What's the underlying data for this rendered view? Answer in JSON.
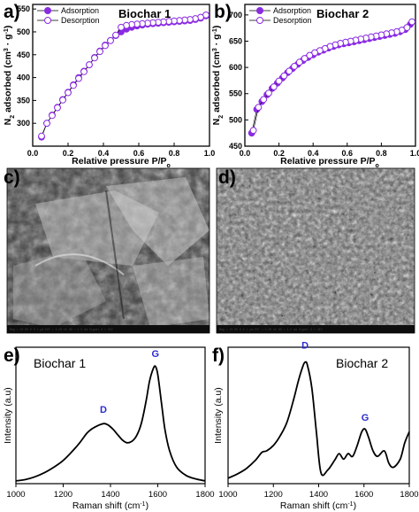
{
  "panels": {
    "a": "a)",
    "b": "b)",
    "c": "c)",
    "d": "d)",
    "e": "e)",
    "f": "f)"
  },
  "colors": {
    "series": "#8a2be2",
    "peak_label": "#2b2bd0",
    "line": "#000000",
    "sem_dark": "#3c3c3c",
    "sem_light": "#cfcfcf"
  },
  "chart_data": [
    {
      "id": "a",
      "type": "scatter",
      "title": "Biochar 1",
      "xlabel": "Relative pressure P/P",
      "xlabel_sub": "o",
      "ylabel": "N",
      "ylabel_sub": "2",
      "ylabel_rest": " adsorbed (cm",
      "ylabel_sup": "3",
      "ylabel_tail": " · g",
      "ylabel_sup2": "-1",
      "ylabel_end": ")",
      "xlim": [
        0.0,
        1.0
      ],
      "ylim": [
        250,
        560
      ],
      "xticks": [
        "0.0",
        "0.2",
        "0.4",
        "0.6",
        "0.8",
        "1.0"
      ],
      "yticks": [
        "300",
        "350",
        "400",
        "450",
        "500",
        "550"
      ],
      "legend": [
        "Adsorption",
        "Desorption"
      ],
      "legend_position": "top-left",
      "series": [
        {
          "name": "Adsorption",
          "marker": "filled-circle",
          "x": [
            0.05,
            0.08,
            0.11,
            0.14,
            0.17,
            0.2,
            0.23,
            0.26,
            0.29,
            0.32,
            0.35,
            0.38,
            0.41,
            0.44,
            0.47,
            0.5,
            0.53,
            0.56,
            0.59,
            0.62,
            0.65,
            0.68,
            0.71,
            0.74,
            0.77,
            0.8,
            0.83,
            0.86,
            0.89,
            0.92,
            0.95,
            0.98
          ],
          "y": [
            270,
            300,
            318,
            335,
            352,
            368,
            384,
            400,
            414,
            428,
            444,
            458,
            471,
            481,
            492,
            500,
            506,
            510,
            513,
            515,
            517,
            518,
            519,
            520,
            521,
            522,
            523,
            524,
            525,
            527,
            530,
            535
          ]
        },
        {
          "name": "Desorption",
          "marker": "open-circle",
          "x": [
            0.98,
            0.95,
            0.92,
            0.89,
            0.86,
            0.83,
            0.8,
            0.77,
            0.74,
            0.71,
            0.68,
            0.65,
            0.62,
            0.59,
            0.56,
            0.53,
            0.5,
            0.47,
            0.44,
            0.41,
            0.38,
            0.35,
            0.32,
            0.29,
            0.26,
            0.23,
            0.2,
            0.17,
            0.14,
            0.11,
            0.08,
            0.05
          ],
          "y": [
            537,
            532,
            529,
            527,
            526,
            525,
            524,
            523,
            522,
            521,
            520,
            519,
            518,
            517,
            516,
            514,
            510,
            493,
            481,
            470,
            457,
            443,
            428,
            413,
            398,
            383,
            367,
            351,
            334,
            317,
            300,
            272
          ]
        }
      ]
    },
    {
      "id": "b",
      "type": "scatter",
      "title": "Biochar 2",
      "xlabel": "Relative pressure P/P",
      "xlabel_sub": "o",
      "ylabel": "N",
      "ylabel_sub": "2",
      "ylabel_rest": " adsorbed (cm",
      "ylabel_sup": "3",
      "ylabel_tail": " · g",
      "ylabel_sup2": "-1",
      "ylabel_end": ")",
      "xlim": [
        0.0,
        1.0
      ],
      "ylim": [
        450,
        720
      ],
      "xticks": [
        "0.0",
        "0.2",
        "0.4",
        "0.6",
        "0.8",
        "1.0"
      ],
      "yticks": [
        "450",
        "500",
        "550",
        "600",
        "650",
        "700"
      ],
      "legend": [
        "Adsorption",
        "Desorption"
      ],
      "legend_position": "top-left",
      "series": [
        {
          "name": "Adsorption",
          "marker": "filled-circle",
          "x": [
            0.04,
            0.07,
            0.1,
            0.13,
            0.16,
            0.19,
            0.22,
            0.25,
            0.28,
            0.31,
            0.34,
            0.37,
            0.4,
            0.43,
            0.46,
            0.49,
            0.52,
            0.55,
            0.58,
            0.61,
            0.64,
            0.67,
            0.7,
            0.73,
            0.76,
            0.79,
            0.82,
            0.85,
            0.88,
            0.91,
            0.94,
            0.97
          ],
          "y": [
            475,
            520,
            535,
            548,
            560,
            570,
            580,
            590,
            598,
            606,
            613,
            619,
            624,
            629,
            633,
            637,
            640,
            643,
            645,
            647,
            649,
            651,
            653,
            655,
            657,
            659,
            661,
            663,
            665,
            668,
            672,
            682
          ]
        },
        {
          "name": "Desorption",
          "marker": "open-circle",
          "x": [
            0.98,
            0.95,
            0.92,
            0.89,
            0.86,
            0.83,
            0.8,
            0.77,
            0.74,
            0.71,
            0.68,
            0.65,
            0.62,
            0.59,
            0.56,
            0.53,
            0.5,
            0.47,
            0.44,
            0.41,
            0.38,
            0.35,
            0.32,
            0.29,
            0.26,
            0.23,
            0.2,
            0.17,
            0.14,
            0.11,
            0.08,
            0.05
          ],
          "y": [
            687,
            676,
            671,
            668,
            666,
            664,
            662,
            660,
            658,
            656,
            654,
            652,
            650,
            648,
            646,
            643,
            640,
            636,
            632,
            628,
            623,
            617,
            610,
            602,
            593,
            584,
            574,
            563,
            551,
            539,
            524,
            480
          ]
        }
      ]
    },
    {
      "id": "e",
      "type": "line",
      "title": "Biochar 1",
      "xlabel": "Raman shift (cm",
      "xlabel_sup": "-1",
      "xlabel_end": ")",
      "ylabel": "Intensity (a.u)",
      "xlim": [
        1000,
        1800
      ],
      "xticks": [
        "1000",
        "1200",
        "1400",
        "1600",
        "1800"
      ],
      "annotations": [
        {
          "text": "D",
          "x": 1370,
          "y": 0.52
        },
        {
          "text": "G",
          "x": 1590,
          "y": 0.93
        }
      ],
      "series": [
        {
          "x": [
            1000,
            1040,
            1080,
            1120,
            1160,
            1200,
            1240,
            1270,
            1300,
            1320,
            1340,
            1360,
            1375,
            1390,
            1410,
            1430,
            1450,
            1470,
            1490,
            1510,
            1530,
            1550,
            1565,
            1580,
            1590,
            1600,
            1615,
            1630,
            1650,
            1680,
            1720,
            1760,
            1800
          ],
          "y": [
            0.02,
            0.03,
            0.05,
            0.08,
            0.12,
            0.17,
            0.24,
            0.3,
            0.37,
            0.4,
            0.42,
            0.435,
            0.44,
            0.43,
            0.4,
            0.36,
            0.32,
            0.3,
            0.31,
            0.35,
            0.44,
            0.6,
            0.75,
            0.84,
            0.86,
            0.8,
            0.6,
            0.4,
            0.24,
            0.12,
            0.06,
            0.035,
            0.02
          ]
        }
      ]
    },
    {
      "id": "f",
      "type": "line",
      "title": "Biochar 2",
      "xlabel": "Raman shift (cm",
      "xlabel_sup": "-1",
      "xlabel_end": ")",
      "ylabel": "Intensity (a.u)",
      "xlim": [
        1000,
        1800
      ],
      "xticks": [
        "1000",
        "1200",
        "1400",
        "1600",
        "1800"
      ],
      "annotations": [
        {
          "text": "D",
          "x": 1340,
          "y": 0.99
        },
        {
          "text": "G",
          "x": 1605,
          "y": 0.46
        }
      ],
      "series": [
        {
          "x": [
            1000,
            1040,
            1080,
            1120,
            1150,
            1170,
            1200,
            1230,
            1260,
            1290,
            1310,
            1330,
            1340,
            1350,
            1370,
            1390,
            1410,
            1440,
            1470,
            1490,
            1510,
            1530,
            1550,
            1570,
            1590,
            1605,
            1620,
            1640,
            1660,
            1690,
            1710,
            1730,
            1760,
            1780,
            1800
          ],
          "y": [
            0.04,
            0.07,
            0.11,
            0.17,
            0.23,
            0.24,
            0.28,
            0.35,
            0.45,
            0.62,
            0.75,
            0.86,
            0.89,
            0.87,
            0.7,
            0.38,
            0.08,
            0.1,
            0.17,
            0.22,
            0.18,
            0.22,
            0.2,
            0.28,
            0.38,
            0.4,
            0.34,
            0.24,
            0.2,
            0.24,
            0.15,
            0.12,
            0.18,
            0.3,
            0.38
          ]
        }
      ]
    }
  ],
  "sem": {
    "c_footer": "Mag = 10.00 K X   1 µm   EHT = 5.00 kV   WD = 4.5 mm   Signal A = SE2",
    "d_footer": "Mag = 10.00 K X   1 µm   EHT = 5.00 kV   WD = 4.5 mm   Signal A = SE2"
  }
}
